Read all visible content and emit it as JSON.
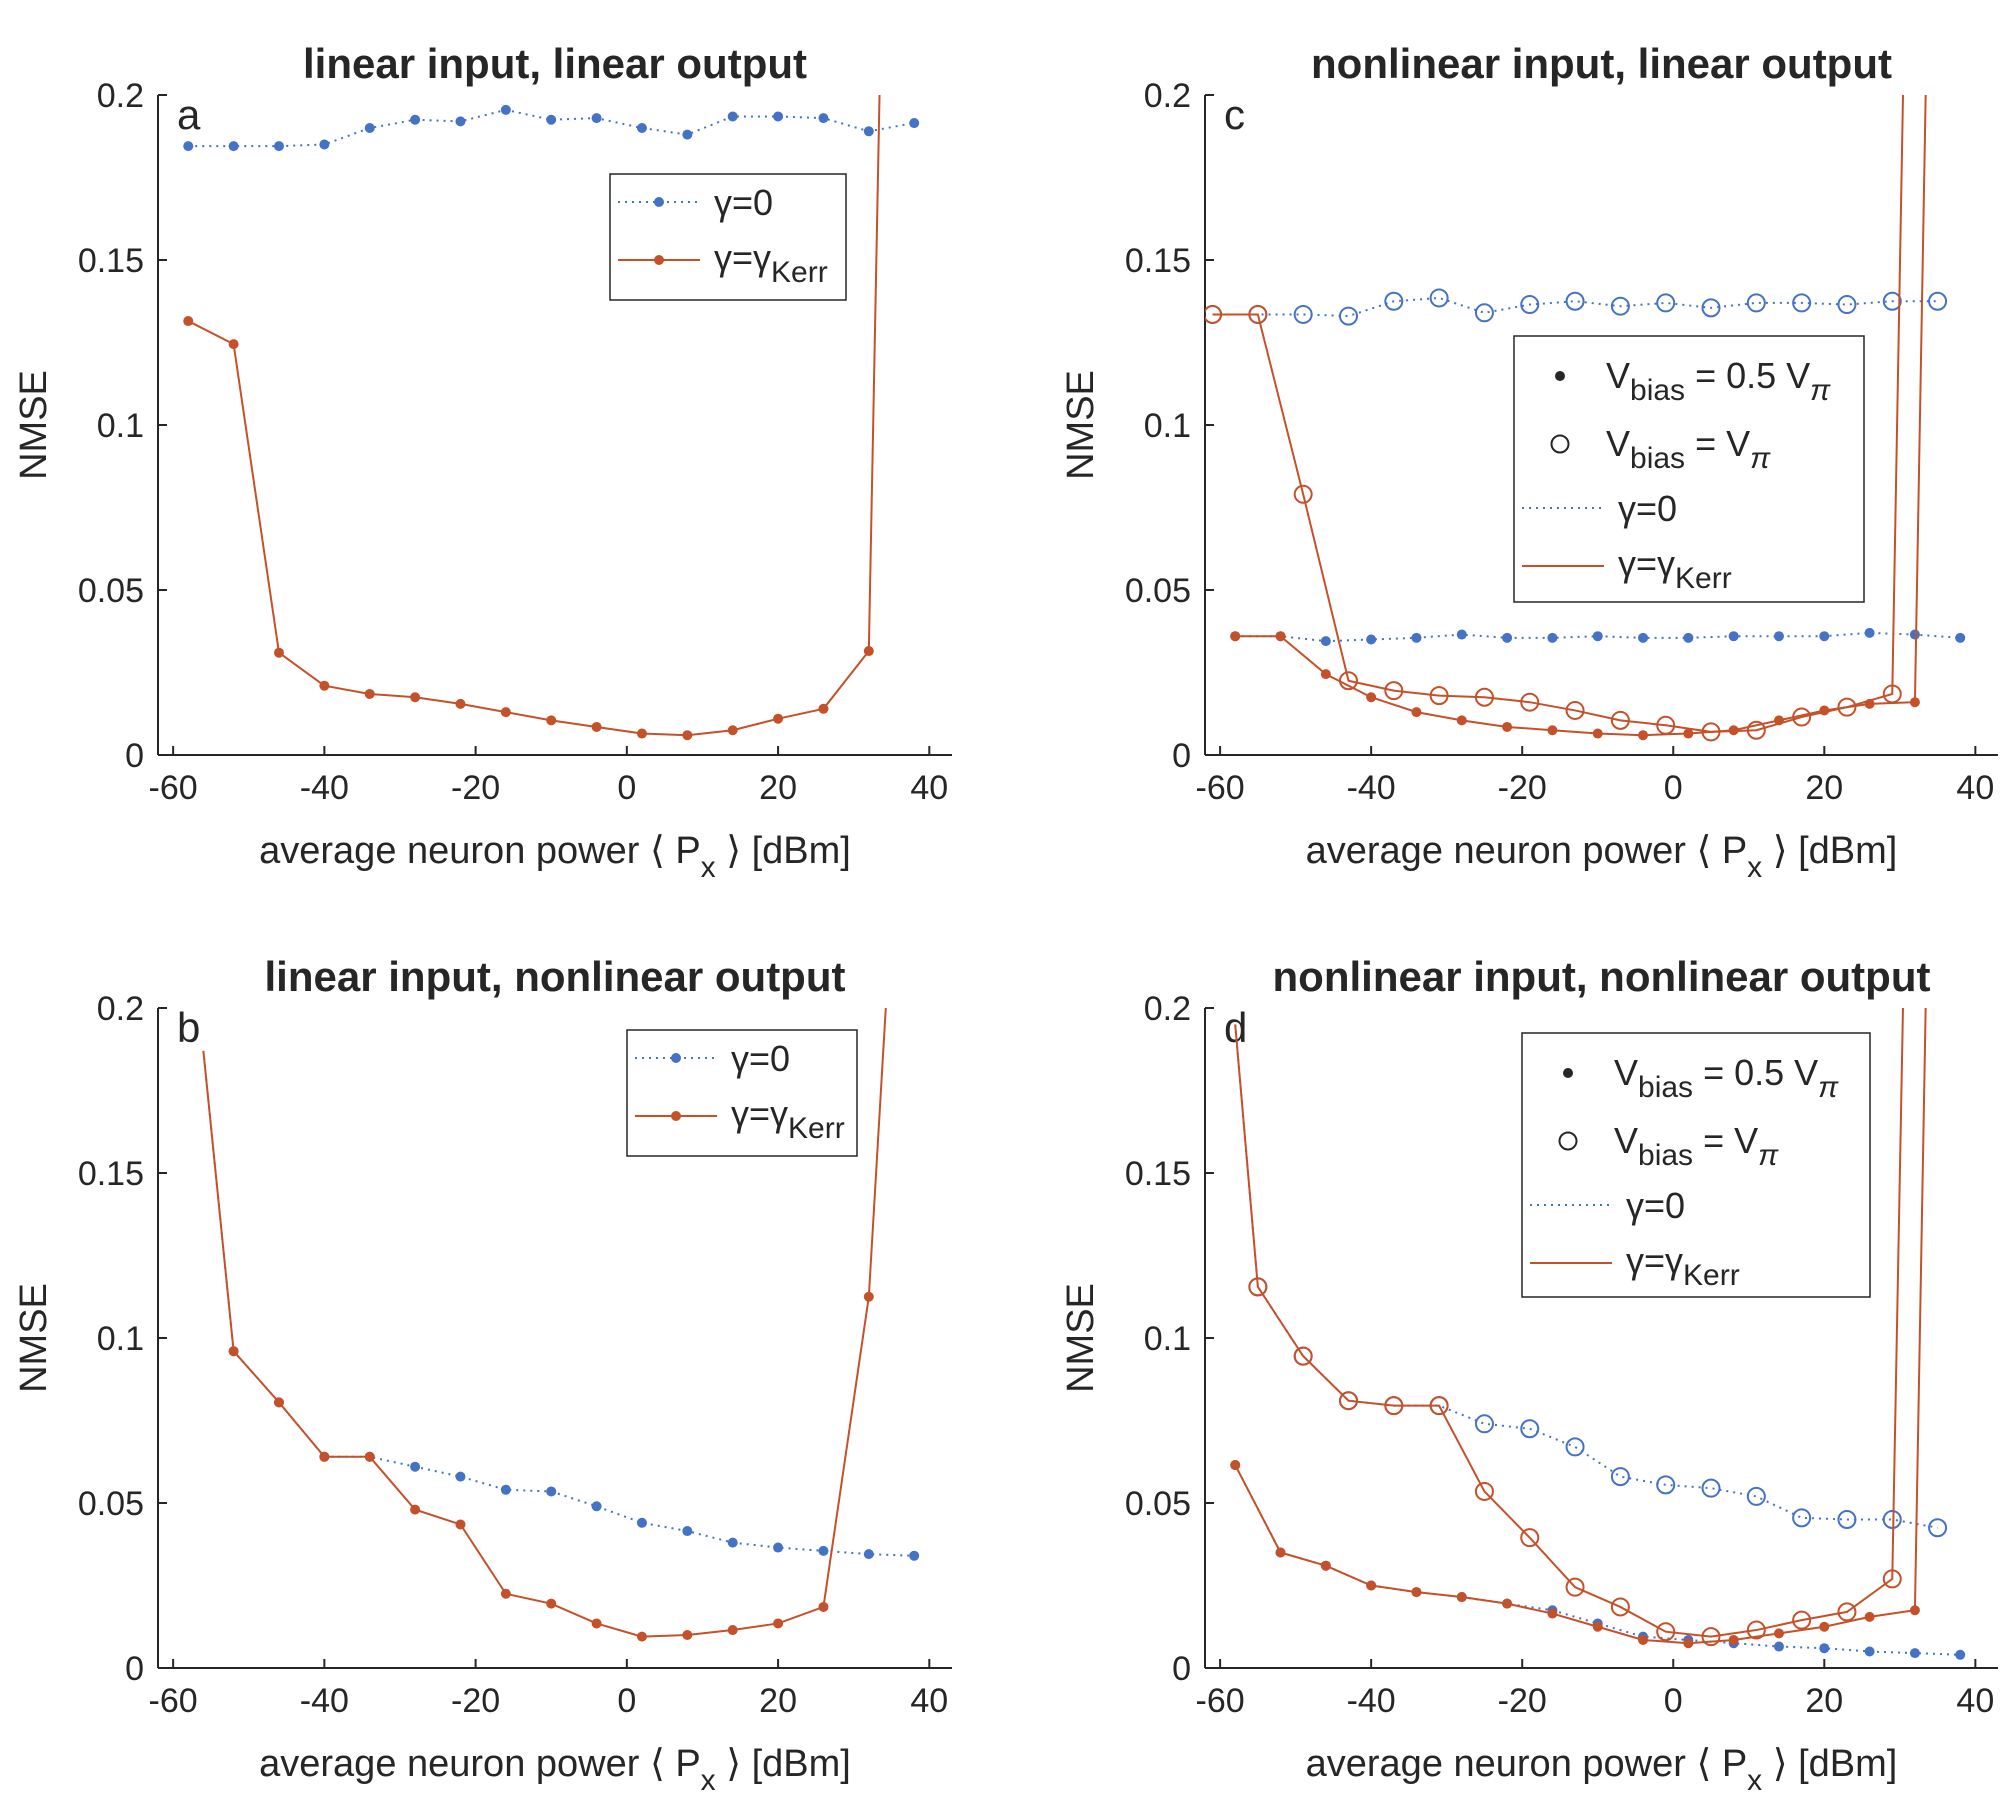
{
  "colors": {
    "blue": "#4472C4",
    "orange": "#C5512A",
    "axis": "#262626"
  },
  "common": {
    "ylabel": "NMSE",
    "xlabel": "average neuron power  ⟨ P",
    "xlabel_sub": "x",
    "xlabel_tail": " ⟩ [dBm]",
    "xlim": [
      -62,
      43
    ],
    "ylim": [
      0,
      0.2
    ],
    "xticks": [
      -60,
      -40,
      -20,
      0,
      20,
      40
    ],
    "xtick_labels": [
      "-60",
      "-40",
      "-20",
      "0",
      "20",
      "40"
    ],
    "yticks": [
      0,
      0.05,
      0.1,
      0.15,
      0.2
    ],
    "ytick_labels": [
      "0",
      "0.05",
      "0.1",
      "0.15",
      "0.2"
    ]
  },
  "legend": {
    "gamma0": "γ=0",
    "gammaKerr": "γ=γ",
    "gammaKerr_sub": "Kerr",
    "vbias_half": "V",
    "vbias_half_sub": "bias",
    "vbias_half_tail": " = 0.5 V",
    "vbias_half_tail_sub": "π",
    "vbias_full": "V",
    "vbias_full_sub": "bias",
    "vbias_full_tail": " = V",
    "vbias_full_tail_sub": "π"
  },
  "chart_data": [
    {
      "id": "a",
      "type": "line",
      "letter": "a",
      "title": "linear input, linear output",
      "legend_type": "simple",
      "series": [
        {
          "name": "γ=0",
          "color": "blue",
          "style": "dotted",
          "marker": "dot",
          "x": [
            -58,
            -52,
            -46,
            -40,
            -34,
            -28,
            -22,
            -16,
            -10,
            -4,
            2,
            8,
            14,
            20,
            26,
            32,
            38
          ],
          "y": [
            0.1845,
            0.1845,
            0.1845,
            0.185,
            0.19,
            0.1925,
            0.192,
            0.1955,
            0.1925,
            0.193,
            0.19,
            0.188,
            0.1935,
            0.1935,
            0.193,
            0.189,
            0.1915
          ]
        },
        {
          "name": "γ=γKerr",
          "color": "orange",
          "style": "solid",
          "marker": "dot",
          "x": [
            -58,
            -52,
            -46,
            -40,
            -34,
            -28,
            -22,
            -16,
            -10,
            -4,
            2,
            8,
            14,
            20,
            26,
            32,
            33.5
          ],
          "y": [
            0.1315,
            0.1245,
            0.031,
            0.021,
            0.0185,
            0.0175,
            0.0155,
            0.013,
            0.0105,
            0.0085,
            0.0065,
            0.006,
            0.0075,
            0.011,
            0.014,
            0.0315,
            0.21
          ],
          "marker_count": 16
        }
      ]
    },
    {
      "id": "b",
      "type": "line",
      "letter": "b",
      "title": "linear input, nonlinear output",
      "legend_type": "simple",
      "series": [
        {
          "name": "γ=0",
          "color": "blue",
          "style": "dotted",
          "marker": "dot",
          "x": [
            -56,
            -52,
            -46,
            -40,
            -34,
            -28,
            -22,
            -16,
            -10,
            -4,
            2,
            8,
            14,
            20,
            26,
            32,
            38
          ],
          "y": [
            0.187,
            0.096,
            0.0805,
            0.064,
            0.064,
            0.061,
            0.058,
            0.054,
            0.0535,
            0.049,
            0.044,
            0.0415,
            0.038,
            0.0365,
            0.0355,
            0.0345,
            0.034
          ],
          "marker_from": 1
        },
        {
          "name": "γ=γKerr",
          "color": "orange",
          "style": "solid",
          "marker": "dot",
          "x": [
            -56,
            -52,
            -46,
            -40,
            -34,
            -28,
            -22,
            -16,
            -10,
            -4,
            2,
            8,
            14,
            20,
            26,
            32,
            34.5
          ],
          "y": [
            0.187,
            0.096,
            0.0805,
            0.064,
            0.064,
            0.048,
            0.0435,
            0.0225,
            0.0195,
            0.0135,
            0.0095,
            0.01,
            0.0115,
            0.0135,
            0.0185,
            0.1125,
            0.21
          ],
          "marker_from": 1,
          "marker_count": 16
        }
      ]
    },
    {
      "id": "c",
      "type": "line",
      "letter": "c",
      "title": "nonlinear input, linear output",
      "legend_type": "bias",
      "series": [
        {
          "name": "γ=0, V_bias = V_π",
          "color": "blue",
          "style": "dotted",
          "marker": "circle",
          "x": [
            -61,
            -55,
            -49,
            -43,
            -37,
            -31,
            -25,
            -19,
            -13,
            -7,
            -1,
            5,
            11,
            17,
            23,
            29,
            35
          ],
          "y": [
            0.1335,
            0.1335,
            0.1335,
            0.133,
            0.1375,
            0.1385,
            0.134,
            0.1365,
            0.1375,
            0.136,
            0.137,
            0.1355,
            0.137,
            0.137,
            0.1365,
            0.1375,
            0.1375
          ]
        },
        {
          "name": "γ=0, V_bias = 0.5 V_π",
          "color": "blue",
          "style": "dotted",
          "marker": "dot",
          "x": [
            -58,
            -52,
            -46,
            -40,
            -34,
            -28,
            -22,
            -16,
            -10,
            -4,
            2,
            8,
            14,
            20,
            26,
            32,
            38
          ],
          "y": [
            0.036,
            0.036,
            0.0345,
            0.035,
            0.0355,
            0.0365,
            0.0355,
            0.0355,
            0.036,
            0.0355,
            0.0355,
            0.036,
            0.036,
            0.036,
            0.037,
            0.0365,
            0.0355
          ]
        },
        {
          "name": "γ=γKerr, V_bias = V_π",
          "color": "orange",
          "style": "solid",
          "marker": "circle",
          "x": [
            -61,
            -55,
            -49,
            -43,
            -37,
            -31,
            -25,
            -19,
            -13,
            -7,
            -1,
            5,
            11,
            17,
            23,
            29,
            30.5
          ],
          "y": [
            0.1335,
            0.1335,
            0.079,
            0.0225,
            0.0195,
            0.018,
            0.0175,
            0.016,
            0.0135,
            0.0105,
            0.009,
            0.007,
            0.0075,
            0.0115,
            0.0145,
            0.0185,
            0.21
          ],
          "marker_count": 16
        },
        {
          "name": "γ=γKerr, V_bias = 0.5 V_π",
          "color": "orange",
          "style": "solid",
          "marker": "dot",
          "x": [
            -58,
            -52,
            -46,
            -40,
            -34,
            -28,
            -22,
            -16,
            -10,
            -4,
            2,
            8,
            14,
            20,
            26,
            32,
            33.5
          ],
          "y": [
            0.036,
            0.036,
            0.0245,
            0.0175,
            0.013,
            0.0105,
            0.0085,
            0.0075,
            0.0065,
            0.006,
            0.0065,
            0.0075,
            0.0105,
            0.0135,
            0.0155,
            0.016,
            0.21
          ],
          "marker_count": 16
        }
      ]
    },
    {
      "id": "d",
      "type": "line",
      "letter": "d",
      "title": "nonlinear input, nonlinear output",
      "legend_type": "bias",
      "series": [
        {
          "name": "γ=0, V_bias = V_π",
          "color": "blue",
          "style": "dotted",
          "marker": "circle",
          "x": [
            -58,
            -55,
            -49,
            -43,
            -37,
            -31,
            -25,
            -19,
            -13,
            -7,
            -1,
            5,
            11,
            17,
            23,
            29,
            35
          ],
          "y": [
            0.195,
            0.1155,
            0.0945,
            0.081,
            0.0795,
            0.0795,
            0.074,
            0.0725,
            0.067,
            0.058,
            0.0555,
            0.0545,
            0.052,
            0.0455,
            0.045,
            0.045,
            0.0425
          ],
          "marker_from": 1
        },
        {
          "name": "γ=0, V_bias = 0.5 V_π",
          "color": "blue",
          "style": "dotted",
          "marker": "dot",
          "x": [
            -58,
            -52,
            -46,
            -40,
            -34,
            -28,
            -22,
            -16,
            -10,
            -4,
            2,
            8,
            14,
            20,
            26,
            32,
            38
          ],
          "y": [
            0.0615,
            0.035,
            0.031,
            0.025,
            0.023,
            0.0215,
            0.0195,
            0.0175,
            0.0135,
            0.0095,
            0.0085,
            0.0075,
            0.0065,
            0.006,
            0.005,
            0.0045,
            0.004
          ]
        },
        {
          "name": "γ=γKerr, V_bias = V_π",
          "color": "orange",
          "style": "solid",
          "marker": "circle",
          "x": [
            -58,
            -55,
            -49,
            -43,
            -37,
            -31,
            -25,
            -19,
            -13,
            -7,
            -1,
            5,
            11,
            17,
            23,
            29,
            30.5
          ],
          "y": [
            0.195,
            0.1155,
            0.0945,
            0.081,
            0.0795,
            0.0795,
            0.0535,
            0.0395,
            0.0245,
            0.0185,
            0.011,
            0.0095,
            0.0115,
            0.0145,
            0.017,
            0.027,
            0.21
          ],
          "marker_from": 1,
          "marker_count": 16
        },
        {
          "name": "γ=γKerr, V_bias = 0.5 V_π",
          "color": "orange",
          "style": "solid",
          "marker": "dot",
          "x": [
            -58,
            -52,
            -46,
            -40,
            -34,
            -28,
            -22,
            -16,
            -10,
            -4,
            2,
            8,
            14,
            20,
            26,
            32,
            33.5
          ],
          "y": [
            0.0615,
            0.035,
            0.031,
            0.025,
            0.023,
            0.0215,
            0.0195,
            0.0165,
            0.0125,
            0.0085,
            0.0075,
            0.0085,
            0.0105,
            0.0125,
            0.0155,
            0.0175,
            0.21
          ],
          "marker_count": 16
        }
      ]
    }
  ]
}
